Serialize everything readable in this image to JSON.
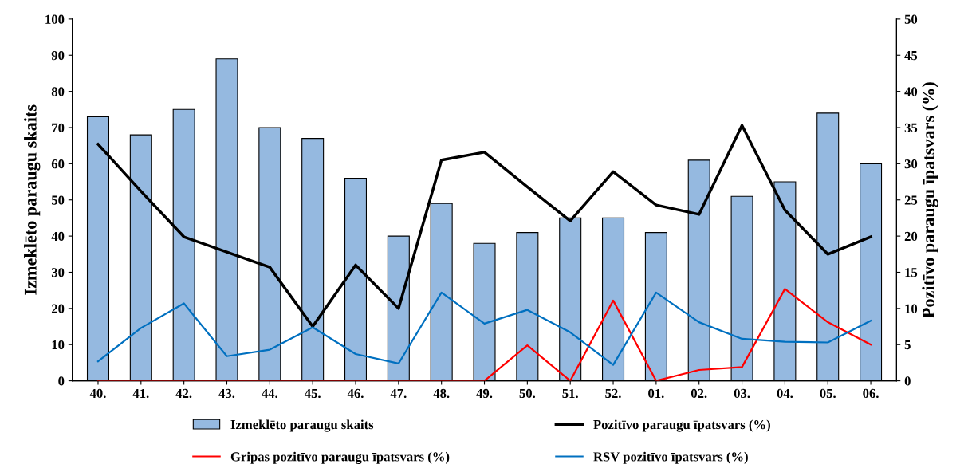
{
  "chart_data": {
    "type": "bar",
    "ylabel": "Izmeklēto paraugu skaits",
    "y2label": "Pozitīvo paraugu īpatsvars (%)",
    "categories": [
      "40.",
      "41.",
      "42.",
      "43.",
      "44.",
      "45.",
      "46.",
      "47.",
      "48.",
      "49.",
      "50.",
      "51.",
      "52.",
      "01.",
      "02.",
      "03.",
      "04.",
      "05.",
      "06."
    ],
    "ylim": [
      0,
      100
    ],
    "yticks": [
      0,
      10,
      20,
      30,
      40,
      50,
      60,
      70,
      80,
      90,
      100
    ],
    "y2lim": [
      0,
      50
    ],
    "y2ticks": [
      0,
      5,
      10,
      15,
      20,
      25,
      30,
      35,
      40,
      45,
      50
    ],
    "grid": false,
    "legend": "bottom",
    "series": [
      {
        "name": "Izmeklēto paraugu skaits",
        "color": "#95b9e0",
        "values": [
          73,
          68,
          75,
          89,
          70,
          67,
          56,
          40,
          49,
          38,
          41,
          45,
          45,
          41,
          61,
          51,
          55,
          74,
          60
        ]
      },
      {
        "name": "Pozitīvo paraugu īpatsvars (%)",
        "type": "line",
        "axis": "y2",
        "color": "#000000",
        "values": [
          32.7,
          26.2,
          19.9,
          17.8,
          15.7,
          7.5,
          16.0,
          10.0,
          30.5,
          31.6,
          26.8,
          22.1,
          28.9,
          24.3,
          23.0,
          35.3,
          23.6,
          17.5,
          19.9
        ]
      },
      {
        "name": "Gripas pozitīvo paraugu īpatsvars (%)",
        "type": "line",
        "axis": "y2",
        "color": "#ff0000",
        "values": [
          0,
          0,
          0,
          0,
          0,
          0,
          0,
          0,
          0,
          0,
          4.9,
          0,
          11.1,
          0,
          1.5,
          1.9,
          12.7,
          8.1,
          5.0
        ]
      },
      {
        "name": "RSV pozitīvo īpatsvars (%)",
        "type": "line",
        "axis": "y2",
        "color": "#0070c0",
        "values": [
          2.7,
          7.3,
          10.7,
          3.4,
          4.3,
          7.4,
          3.7,
          2.4,
          12.2,
          7.9,
          9.8,
          6.7,
          2.2,
          12.2,
          8.1,
          5.8,
          5.4,
          5.3,
          8.3
        ]
      }
    ]
  }
}
